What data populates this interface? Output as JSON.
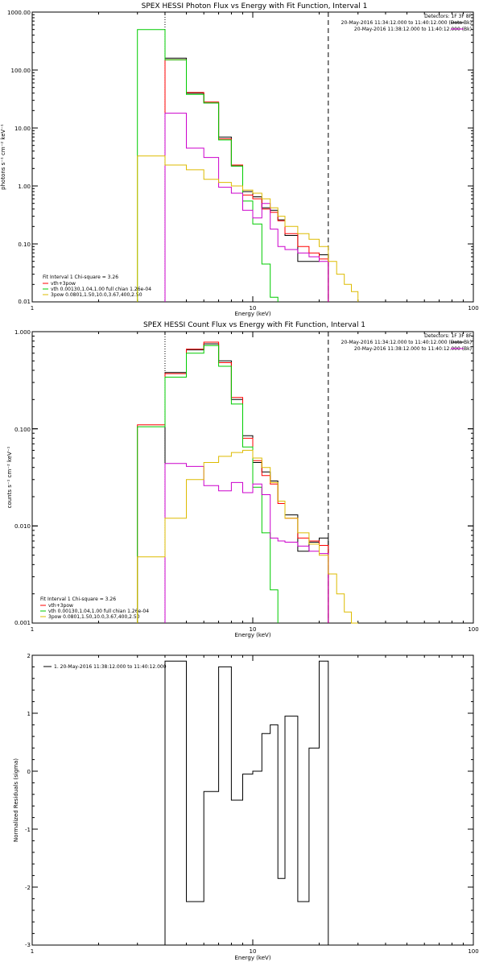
{
  "colors": {
    "black": "#000000",
    "red": "#ff0000",
    "green": "#00cc00",
    "magenta": "#cc00cc",
    "yellow": "#ddbb00"
  },
  "chart_data": [
    {
      "type": "line",
      "step": true,
      "title": "SPEX HESSI Photon Flux vs Energy with Fit Function, Interval 1",
      "xlabel": "Energy (keV)",
      "ylabel": "photons s⁻¹ cm⁻² keV⁻¹",
      "xscale": "log",
      "yscale": "log",
      "xlim": [
        1,
        100
      ],
      "ylim": [
        0.01,
        1000
      ],
      "xticks": [
        "1",
        "10",
        "100"
      ],
      "yticks": [
        "0.01",
        "0.10",
        "1.00",
        "10.00",
        "100.00",
        "1000.00"
      ],
      "info": [
        "Detectors: 1F 3F 8F",
        "20-May-2016 11:34:12.000 to 11:40:12.000 (Data-Bk)",
        "20-May-2016 11:38:12.000 to 11:40:12.000 (Bk)"
      ],
      "legend": [
        "Fit Interval 1    Chi-square = 3.26",
        "vth+3pow",
        "vth 0.00130,1.04,1.00  full chian 1.26e-04",
        "3pow 0.0801,1.50,10.0,3.67,400,2.50"
      ],
      "vlines": [
        4.0,
        22.0
      ],
      "edges": [
        3.0,
        4.0,
        5.0,
        6.0,
        7.0,
        8.0,
        9.0,
        10.0,
        11.0,
        12.0,
        13.0,
        14.0,
        16.0,
        18.0,
        20.0,
        22.0,
        24.0,
        26.0,
        28.0,
        30.0
      ],
      "series": [
        {
          "color": "black",
          "values": [
            null,
            160,
            40,
            27,
            7,
            2.2,
            0.8,
            0.65,
            0.42,
            0.38,
            0.26,
            0.14,
            0.05,
            0.05,
            0.065,
            null,
            null,
            null,
            null
          ]
        },
        {
          "color": "red",
          "values": [
            null,
            150,
            41,
            28,
            6.5,
            2.3,
            0.7,
            0.6,
            0.4,
            0.35,
            0.25,
            0.15,
            0.09,
            0.07,
            0.055,
            null,
            null,
            null,
            null
          ]
        },
        {
          "color": "green",
          "values": [
            500,
            150,
            38,
            27,
            6.2,
            2.2,
            0.55,
            0.22,
            0.045,
            0.012,
            null,
            null,
            null,
            null,
            null,
            null,
            null,
            null,
            null
          ]
        },
        {
          "color": "magenta",
          "values": [
            null,
            18,
            4.5,
            3.1,
            0.95,
            0.75,
            0.38,
            0.28,
            0.5,
            0.18,
            0.09,
            0.08,
            0.07,
            0.06,
            0.05,
            null,
            null,
            null,
            null
          ]
        },
        {
          "color": "yellow",
          "values": [
            3.3,
            2.3,
            1.9,
            1.3,
            1.15,
            1.0,
            0.85,
            0.75,
            0.6,
            0.42,
            0.3,
            0.2,
            0.15,
            0.12,
            0.09,
            0.05,
            0.03,
            0.02,
            0.015
          ]
        }
      ]
    },
    {
      "type": "line",
      "step": true,
      "title": "SPEX HESSI Count Flux vs Energy with Fit Function, Interval 1",
      "xlabel": "Energy (keV)",
      "ylabel": "counts s⁻¹ cm⁻² keV⁻¹",
      "xscale": "log",
      "yscale": "log",
      "xlim": [
        1,
        100
      ],
      "ylim": [
        0.001,
        1.0
      ],
      "xticks": [
        "1",
        "10",
        "100"
      ],
      "yticks": [
        "0.001",
        "0.010",
        "0.100",
        "1.000"
      ],
      "info": [
        "Detectors: 1F 3F 8F",
        "20-May-2016 11:34:12.000 to 11:40:12.000 (Data-Bk)",
        "20-May-2016 11:38:12.000 to 11:40:12.000 (Bk)"
      ],
      "legend": [
        "Fit Interval 1    Chi-square = 3.26",
        "vth+3pow",
        "vth 0.00130,1.04,1.00  full chian 1.26e-04",
        "3pow 0.0801,1.50,10.0,3.67,400,2.50"
      ],
      "vlines": [
        4.0,
        22.0
      ],
      "edges": [
        3.0,
        4.0,
        5.0,
        6.0,
        7.0,
        8.0,
        9.0,
        10.0,
        11.0,
        12.0,
        13.0,
        14.0,
        16.0,
        18.0,
        20.0,
        22.0,
        24.0,
        26.0,
        28.0,
        30.0
      ],
      "series": [
        {
          "color": "black",
          "values": [
            null,
            0.38,
            0.65,
            0.75,
            0.5,
            0.2,
            0.085,
            0.045,
            0.036,
            0.029,
            0.018,
            0.013,
            0.0055,
            0.0068,
            0.0075,
            null,
            null,
            null,
            null
          ]
        },
        {
          "color": "red",
          "values": [
            0.11,
            0.37,
            0.66,
            0.78,
            0.48,
            0.21,
            0.08,
            0.047,
            0.033,
            0.027,
            0.017,
            0.012,
            0.0075,
            0.007,
            0.0063,
            null,
            null,
            null,
            null
          ]
        },
        {
          "color": "green",
          "values": [
            0.105,
            0.34,
            0.6,
            0.72,
            0.44,
            0.18,
            0.065,
            0.025,
            0.0085,
            0.0022,
            null,
            null,
            null,
            null,
            null,
            null,
            null,
            null,
            null
          ]
        },
        {
          "color": "magenta",
          "values": [
            null,
            0.044,
            0.041,
            0.026,
            0.023,
            0.028,
            0.022,
            0.027,
            0.021,
            0.0075,
            0.007,
            0.0068,
            0.0062,
            0.0055,
            0.0052,
            null,
            null,
            null,
            null
          ]
        },
        {
          "color": "yellow",
          "values": [
            0.0048,
            0.012,
            0.03,
            0.045,
            0.052,
            0.057,
            0.06,
            0.05,
            0.04,
            0.028,
            0.018,
            0.012,
            0.0085,
            0.0065,
            0.005,
            0.0032,
            0.002,
            0.0013,
            0.001
          ]
        }
      ]
    },
    {
      "type": "line",
      "step": true,
      "title": "",
      "xlabel": "Energy (keV)",
      "ylabel": "Normalized Residuals (sigma)",
      "xscale": "log",
      "yscale": "linear",
      "xlim": [
        1,
        100
      ],
      "ylim": [
        -3,
        2
      ],
      "xticks": [
        "1",
        "10",
        "100"
      ],
      "yticks": [
        "-3",
        "-2",
        "-1",
        "0",
        "1",
        "2"
      ],
      "legend": [
        "1. 20-May-2016 11:38:12.000 to 11:40:12.000"
      ],
      "edges": [
        4.0,
        5.0,
        6.0,
        7.0,
        8.0,
        9.0,
        10.0,
        11.0,
        12.0,
        13.0,
        14.0,
        16.0,
        18.0,
        20.0,
        22.0
      ],
      "series": [
        {
          "color": "black",
          "values": [
            1.9,
            -2.25,
            -0.35,
            1.8,
            -0.5,
            -0.05,
            0.0,
            0.65,
            0.8,
            -1.85,
            0.95,
            -2.25,
            0.4,
            1.9
          ]
        }
      ]
    }
  ]
}
